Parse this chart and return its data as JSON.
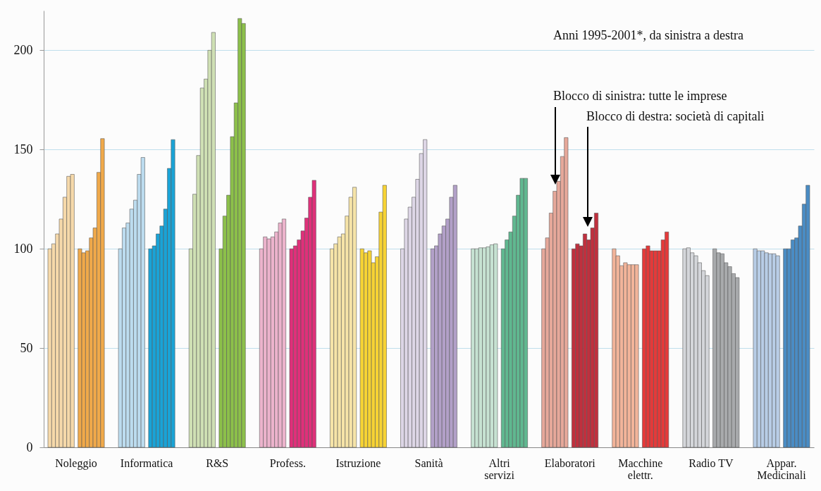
{
  "chart_data": {
    "type": "bar",
    "categories": [
      "Noleggio",
      "Informatica",
      "R&S",
      "Profess.",
      "Istruzione",
      "Sanità",
      "Altri\nservizi",
      "Elaboratori",
      "Macchine\nelettr.",
      "Radio TV",
      "Appar.\nMedicinali"
    ],
    "series": [
      {
        "colors": [
          "#f6d9aa",
          "#bcdcef",
          "#cfe0b4",
          "#ecb3cc",
          "#f6e4a8",
          "#ddd6e6",
          "#c6e2d2",
          "#e6a89a",
          "#f2b49a",
          "#d4d6da",
          "#b8cde6"
        ],
        "values": [
          100,
          100,
          100,
          100,
          100,
          100,
          100,
          100,
          100,
          100,
          100
        ]
      },
      {
        "colors": [
          "#f6d9aa",
          "#bcdcef",
          "#cfe0b4",
          "#ecb3cc",
          "#f6e4a8",
          "#ddd6e6",
          "#c6e2d2",
          "#e6a89a",
          "#f2b49a",
          "#d4d6da",
          "#b8cde6"
        ],
        "values": [
          102.5,
          110.5,
          127.5,
          106,
          102.5,
          115,
          100,
          105.5,
          96.5,
          100.5,
          99
        ]
      },
      {
        "colors": [
          "#f6d9aa",
          "#bcdcef",
          "#cfe0b4",
          "#ecb3cc",
          "#f6e4a8",
          "#ddd6e6",
          "#c6e2d2",
          "#e6a89a",
          "#f2b49a",
          "#d4d6da",
          "#b8cde6"
        ],
        "values": [
          107.5,
          113,
          147,
          105,
          106,
          121,
          100.5,
          118,
          91.5,
          98,
          99
        ]
      },
      {
        "colors": [
          "#f6d9aa",
          "#bcdcef",
          "#cfe0b4",
          "#ecb3cc",
          "#f6e4a8",
          "#ddd6e6",
          "#c6e2d2",
          "#e6a89a",
          "#f2b49a",
          "#d4d6da",
          "#b8cde6"
        ],
        "values": [
          115,
          120,
          181,
          106,
          107.5,
          126,
          100.5,
          129,
          93,
          96.5,
          98
        ]
      },
      {
        "colors": [
          "#f6d9aa",
          "#bcdcef",
          "#cfe0b4",
          "#ecb3cc",
          "#f6e4a8",
          "#ddd6e6",
          "#c6e2d2",
          "#e6a89a",
          "#f2b49a",
          "#d4d6da",
          "#b8cde6"
        ],
        "values": [
          126,
          124.5,
          185.5,
          108.5,
          116.5,
          135,
          101,
          134,
          92,
          93,
          97.5
        ]
      },
      {
        "colors": [
          "#f6d9aa",
          "#bcdcef",
          "#cfe0b4",
          "#ecb3cc",
          "#f6e4a8",
          "#ddd6e6",
          "#c6e2d2",
          "#e6a89a",
          "#f2b49a",
          "#d4d6da",
          "#b8cde6"
        ],
        "values": [
          136.5,
          137.5,
          200,
          113,
          126,
          148,
          102,
          146.5,
          92,
          89,
          97.5
        ]
      },
      {
        "colors": [
          "#f6d9aa",
          "#bcdcef",
          "#cfe0b4",
          "#ecb3cc",
          "#f6e4a8",
          "#ddd6e6",
          "#c6e2d2",
          "#e6a89a",
          "#f2b49a",
          "#d4d6da",
          "#b8cde6"
        ],
        "values": [
          137.5,
          146,
          209,
          115,
          131,
          155,
          102.5,
          156,
          92,
          86.5,
          96.5
        ]
      },
      {
        "colors": [
          "#f0a94a",
          "#1aa3d6",
          "#8cc04a",
          "#e0307a",
          "#f7d334",
          "#b2a0c8",
          "#60b890",
          "#c0303e",
          "#e43a3a",
          "#a8aaac",
          "#4a8cc4"
        ],
        "values": [
          100,
          100,
          100,
          100,
          100,
          100,
          100,
          100,
          100,
          100,
          100
        ]
      },
      {
        "colors": [
          "#f0a94a",
          "#1aa3d6",
          "#8cc04a",
          "#e0307a",
          "#f7d334",
          "#b2a0c8",
          "#60b890",
          "#c0303e",
          "#e43a3a",
          "#a8aaac",
          "#4a8cc4"
        ],
        "values": [
          98,
          101.5,
          116.5,
          101.5,
          98,
          101.5,
          104.5,
          102.5,
          101.5,
          98,
          100
        ]
      },
      {
        "colors": [
          "#f0a94a",
          "#1aa3d6",
          "#8cc04a",
          "#e0307a",
          "#f7d334",
          "#b2a0c8",
          "#60b890",
          "#c0303e",
          "#e43a3a",
          "#a8aaac",
          "#4a8cc4"
        ],
        "values": [
          99,
          107.5,
          127,
          104.5,
          99,
          107.5,
          108.5,
          101.5,
          99,
          97.5,
          104.5
        ]
      },
      {
        "colors": [
          "#f0a94a",
          "#1aa3d6",
          "#8cc04a",
          "#e0307a",
          "#f7d334",
          "#b2a0c8",
          "#60b890",
          "#c0303e",
          "#e43a3a",
          "#a8aaac",
          "#4a8cc4"
        ],
        "values": [
          105.5,
          111.5,
          156.5,
          109,
          93,
          111.5,
          116.5,
          107.5,
          99,
          93,
          105.5
        ]
      },
      {
        "colors": [
          "#f0a94a",
          "#1aa3d6",
          "#8cc04a",
          "#e0307a",
          "#f7d334",
          "#b2a0c8",
          "#60b890",
          "#c0303e",
          "#e43a3a",
          "#a8aaac",
          "#4a8cc4"
        ],
        "values": [
          110.5,
          120,
          173.5,
          115.5,
          96,
          115,
          127,
          104.5,
          99,
          91,
          111.5
        ]
      },
      {
        "colors": [
          "#f0a94a",
          "#1aa3d6",
          "#8cc04a",
          "#e0307a",
          "#f7d334",
          "#b2a0c8",
          "#60b890",
          "#c0303e",
          "#e43a3a",
          "#a8aaac",
          "#4a8cc4"
        ],
        "values": [
          138.5,
          140.5,
          216,
          126,
          118.5,
          126,
          135.5,
          110.5,
          104.5,
          87.5,
          122.5
        ]
      },
      {
        "colors": [
          "#f0a94a",
          "#1aa3d6",
          "#8cc04a",
          "#e0307a",
          "#f7d334",
          "#b2a0c8",
          "#60b890",
          "#c0303e",
          "#e43a3a",
          "#a8aaac",
          "#4a8cc4"
        ],
        "values": [
          155.5,
          155,
          213.5,
          134.5,
          132,
          132,
          135.5,
          118,
          108.5,
          85.5,
          132
        ]
      }
    ],
    "ylim": [
      0,
      220
    ],
    "yticks": [
      0,
      50,
      100,
      150,
      200
    ],
    "grid": "y",
    "annotations": [
      "Anni 1995-2001*, da sinistra a destra",
      "Blocco di sinistra: tutte le imprese",
      "Blocco di destra: società di capitali"
    ]
  }
}
